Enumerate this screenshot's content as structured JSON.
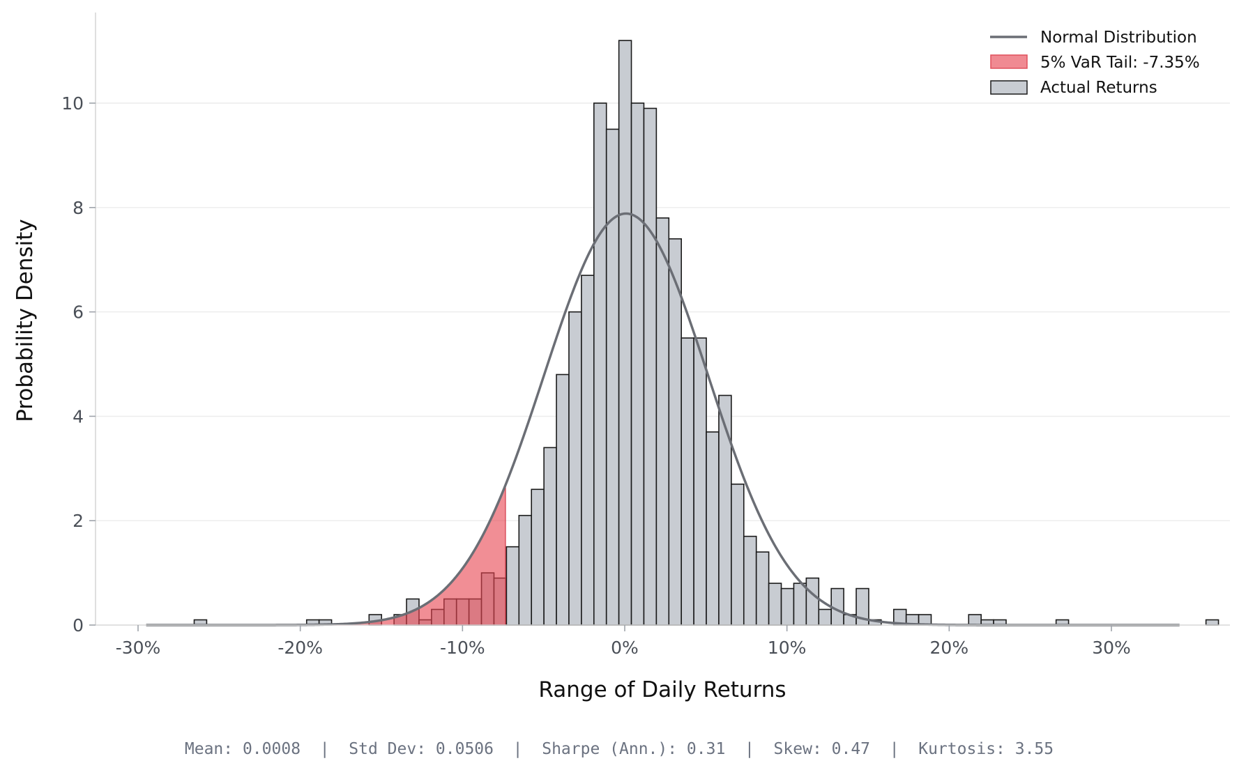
{
  "chart_data": {
    "type": "bar",
    "title": "",
    "xlabel": "Range of Daily Returns",
    "ylabel": "Probability Density",
    "xlim": [
      -0.32,
      0.34
    ],
    "ylim": [
      0,
      11.6
    ],
    "x_ticks": [
      -0.3,
      -0.2,
      -0.1,
      0.0,
      0.1,
      0.2,
      0.3
    ],
    "x_tick_labels": [
      "-30%",
      "-20%",
      "-10%",
      "0%",
      "10%",
      "20%",
      "30%"
    ],
    "y_ticks": [
      0,
      2,
      4,
      6,
      8,
      10
    ],
    "y_tick_labels": [
      "0",
      "2",
      "4",
      "6",
      "8",
      "10"
    ],
    "grid": "horizontal",
    "legend_position": "top-right",
    "histogram": {
      "name": "Actual Returns",
      "bin_width": 0.0077,
      "bin_start": -0.2654,
      "counts_density": [
        0.1,
        0.0,
        0.0,
        0.0,
        0.0,
        0.0,
        0.0,
        0.0,
        0.0,
        0.1,
        0.1,
        0.0,
        0.0,
        0.0,
        0.2,
        0.0,
        0.2,
        0.5,
        0.1,
        0.3,
        0.5,
        0.5,
        0.5,
        1.0,
        0.9,
        1.5,
        2.1,
        2.6,
        3.4,
        4.8,
        6.0,
        6.7,
        10.0,
        9.5,
        11.2,
        10.0,
        9.9,
        7.8,
        7.4,
        5.5,
        5.5,
        3.7,
        4.4,
        2.7,
        1.7,
        1.4,
        0.8,
        0.7,
        0.8,
        0.9,
        0.3,
        0.7,
        0.2,
        0.7,
        0.1,
        0.0,
        0.3,
        0.2,
        0.2,
        0.0,
        0.0,
        0.0,
        0.2,
        0.1,
        0.1,
        0.0,
        0.0,
        0.0,
        0.0,
        0.1,
        0.0,
        0.0,
        0.0,
        0.0,
        0.0,
        0.0,
        0.0,
        0.0,
        0.0,
        0.0,
        0.0,
        0.1
      ],
      "fill_color": "#c8ccd2",
      "edge_color": "#1a1a1a"
    },
    "series": [
      {
        "name": "Normal Distribution",
        "type": "line",
        "mean": 0.0008,
        "std": 0.0506,
        "x_range": [
          -0.295,
          0.342
        ],
        "color": "#6b6e75"
      }
    ],
    "var_tail": {
      "name": "5% VaR Tail: -7.35%",
      "threshold": -0.0735,
      "fill_color": "#e8424f",
      "fill_opacity": 0.6
    },
    "legend": [
      {
        "label": "Normal Distribution",
        "kind": "line",
        "color": "#6b6e75"
      },
      {
        "label": "5% VaR Tail: -7.35%",
        "kind": "patch",
        "color": "#f08a92",
        "edge": "#e0505c"
      },
      {
        "label": "Actual Returns",
        "kind": "patch",
        "color": "#c8ccd2",
        "edge": "#1a1a1a"
      }
    ],
    "stats_footer": "Mean: 0.0008  |  Std Dev: 0.0506  |  Sharpe (Ann.): 0.31  |  Skew: 0.47  |  Kurtosis: 3.55"
  }
}
